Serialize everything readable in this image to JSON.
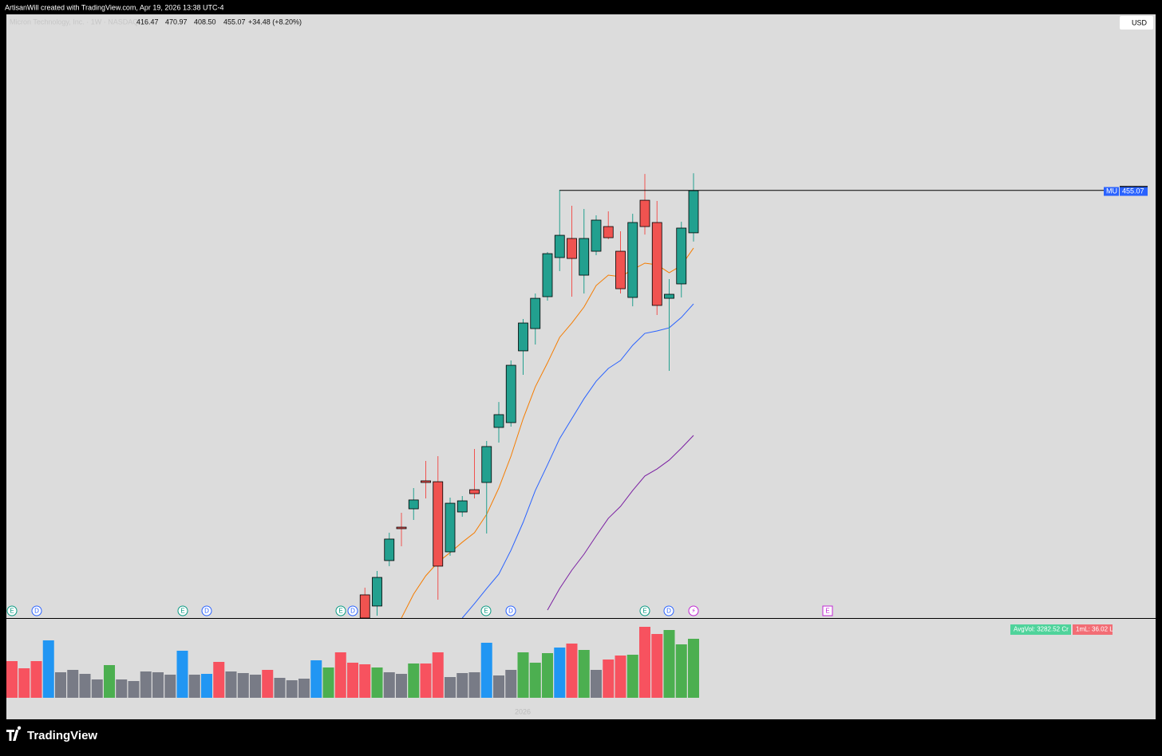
{
  "header": "ArtisanWill created with TradingView.com, Apr 19, 2026 13:38 UTC-4",
  "footer": "TradingView",
  "chart_data": {
    "type": "candlestick",
    "symbol": "Micron Technology, Inc. · 1W · NASDAQ",
    "ohlc_legend": [
      "416.47",
      "470.97",
      "408.50",
      "455.07"
    ],
    "change_label": "+34.48 (+8.20%)",
    "currency": "USD",
    "ticker": "MU",
    "x_label": "2026",
    "up_color": "#22a08f",
    "down_color": "#f05350",
    "ylim": [
      63.8,
      615.0
    ],
    "hline": 455.31,
    "open": [
      null,
      null,
      null,
      null,
      null,
      null,
      null,
      null,
      null,
      null,
      null,
      null,
      null,
      null,
      null,
      null,
      null,
      null,
      null,
      null,
      null,
      null,
      null,
      null,
      null,
      null,
      null,
      null,
      null,
      85.0,
      74.8,
      116.4,
      147.0,
      163.8,
      189.4,
      188.6,
      124.4,
      160.9,
      181.3,
      187.9,
      238.3,
      242.7,
      308.4,
      328.8,
      358.0,
      393.8,
      411.3,
      377.7,
      399.6,
      422.2,
      399.6,
      357.3,
      446.3,
      425.9,
      356.5,
      369.7,
      416.47
    ],
    "high": [
      null,
      null,
      null,
      null,
      null,
      null,
      null,
      null,
      null,
      null,
      null,
      null,
      null,
      null,
      null,
      null,
      null,
      null,
      null,
      null,
      null,
      null,
      null,
      null,
      null,
      null,
      null,
      null,
      null,
      91.6,
      106.9,
      141.9,
      160.2,
      182.8,
      207.6,
      212.0,
      174.0,
      175.5,
      218.6,
      225.9,
      261.6,
      299.6,
      337.6,
      360.9,
      398.9,
      455.8,
      441.2,
      438.3,
      432.5,
      436.1,
      417.9,
      433.9,
      470.4,
      445.6,
      374.1,
      426.6,
      470.97
    ],
    "low": [
      null,
      null,
      null,
      null,
      null,
      null,
      null,
      null,
      null,
      null,
      null,
      null,
      null,
      null,
      null,
      null,
      null,
      null,
      null,
      null,
      null,
      null,
      null,
      null,
      null,
      null,
      null,
      null,
      null,
      60.2,
      66.0,
      111.3,
      129.5,
      153.6,
      173.3,
      80.6,
      120.8,
      156.5,
      173.3,
      141.2,
      224.4,
      239.0,
      286.5,
      314.2,
      354.4,
      381.4,
      358.0,
      360.9,
      396.0,
      410.6,
      360.9,
      349.2,
      414.9,
      341.2,
      290.1,
      357.3,
      408.5
    ],
    "close": [
      null,
      null,
      null,
      null,
      null,
      null,
      null,
      null,
      null,
      null,
      null,
      null,
      null,
      null,
      null,
      null,
      null,
      null,
      null,
      null,
      null,
      null,
      null,
      null,
      null,
      null,
      null,
      null,
      null,
      63.8,
      101.0,
      136.1,
      145.6,
      171.9,
      187.9,
      111.3,
      168.9,
      171.1,
      177.7,
      220.8,
      250.0,
      295.2,
      333.9,
      356.5,
      397.4,
      414.2,
      393.0,
      411.3,
      428.1,
      412.0,
      365.3,
      425.9,
      422.2,
      350.0,
      360.2,
      420.8,
      455.07
    ],
    "ma_series": [
      {
        "color": "#f57c00",
        "values": [
          null,
          null,
          null,
          null,
          null,
          null,
          null,
          null,
          null,
          null,
          null,
          null,
          null,
          null,
          null,
          null,
          null,
          null,
          null,
          null,
          null,
          null,
          null,
          null,
          null,
          null,
          null,
          null,
          null,
          null,
          null,
          null,
          63.8,
          85.7,
          102.5,
          114.9,
          123.7,
          133.2,
          141.9,
          158.7,
          182.8,
          212.0,
          246.3,
          275.5,
          297.4,
          320.8,
          333.9,
          348.5,
          368.2,
          377.7,
          376.3,
          382.8,
          388.7,
          387.2,
          379.9,
          386.5,
          402.5
        ]
      },
      {
        "color": "#2962ff",
        "values": [
          null,
          null,
          null,
          null,
          null,
          null,
          null,
          null,
          null,
          null,
          null,
          null,
          null,
          null,
          null,
          null,
          null,
          null,
          null,
          null,
          null,
          null,
          null,
          null,
          null,
          null,
          null,
          null,
          null,
          null,
          null,
          null,
          null,
          null,
          null,
          null,
          null,
          63.8,
          77.0,
          90.8,
          104.0,
          125.9,
          151.4,
          180.6,
          204.0,
          228.1,
          246.3,
          264.6,
          280.6,
          292.3,
          299.6,
          313.5,
          324.4,
          326.6,
          329.5,
          339.0,
          351.4
        ]
      },
      {
        "color": "#7b1fa2",
        "values": [
          null,
          null,
          null,
          null,
          null,
          null,
          null,
          null,
          null,
          null,
          null,
          null,
          null,
          null,
          null,
          null,
          null,
          null,
          null,
          null,
          null,
          null,
          null,
          null,
          null,
          null,
          null,
          null,
          null,
          null,
          null,
          null,
          null,
          null,
          null,
          null,
          null,
          null,
          null,
          null,
          null,
          null,
          null,
          null,
          71.1,
          90.8,
          107.6,
          122.2,
          139.0,
          155.1,
          166.0,
          180.6,
          193.8,
          200.3,
          208.4,
          219.3,
          231.0
        ]
      }
    ],
    "events": [
      "E",
      "D",
      "E",
      "D",
      "E",
      "D",
      "E",
      "D",
      "E",
      "D",
      "⚡",
      "E"
    ],
    "volume": {
      "ylim": [
        0,
        100
      ],
      "avg_label": "AvgVol: 3282.52 Cr",
      "ml_label": "1mL: 36.02 L",
      "values": [
        46,
        37,
        46,
        72,
        32,
        35,
        30,
        23,
        41,
        23,
        21,
        33,
        32,
        29,
        59,
        29,
        30,
        45,
        33,
        31,
        29,
        35,
        25,
        22,
        24,
        47,
        38,
        57,
        44,
        42,
        38,
        32,
        30,
        43,
        43,
        57,
        26,
        31,
        32,
        69,
        28,
        35,
        57,
        44,
        56,
        63,
        68,
        60,
        35,
        48,
        53,
        54,
        89,
        80,
        85,
        67,
        74
      ],
      "colors": [
        "#f7525f",
        "#f7525f",
        "#f7525f",
        "#2196f3",
        "#787b86",
        "#787b86",
        "#787b86",
        "#787b86",
        "#4caf50",
        "#787b86",
        "#787b86",
        "#787b86",
        "#787b86",
        "#787b86",
        "#2196f3",
        "#787b86",
        "#2196f3",
        "#f7525f",
        "#787b86",
        "#787b86",
        "#787b86",
        "#f7525f",
        "#787b86",
        "#787b86",
        "#787b86",
        "#2196f3",
        "#4caf50",
        "#f7525f",
        "#f7525f",
        "#f7525f",
        "#4caf50",
        "#787b86",
        "#787b86",
        "#4caf50",
        "#f7525f",
        "#f7525f",
        "#787b86",
        "#787b86",
        "#787b86",
        "#2196f3",
        "#787b86",
        "#787b86",
        "#4caf50",
        "#4caf50",
        "#4caf50",
        "#2196f3",
        "#f7525f",
        "#4caf50",
        "#787b86",
        "#f7525f",
        "#f7525f",
        "#4caf50",
        "#f7525f",
        "#f7525f",
        "#4caf50",
        "#4caf50",
        "#4caf50"
      ]
    }
  }
}
